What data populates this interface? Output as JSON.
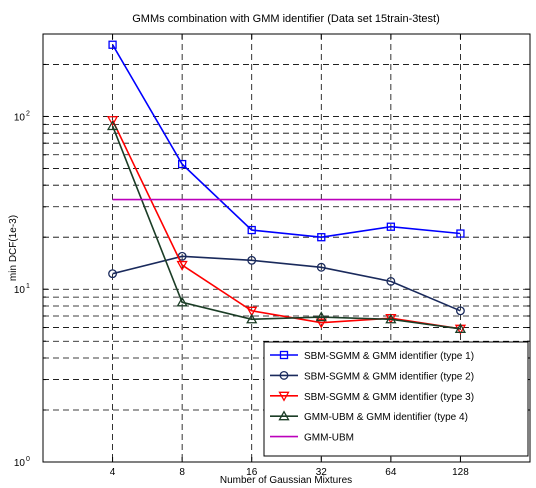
{
  "chart_data": {
    "type": "line",
    "title": "GMMs combination with GMM identifier (Data set 15train-3test)",
    "xlabel": "Number of Gaussian Mixtures",
    "ylabel": "min DCF(1e-3)",
    "x_scale": "log2",
    "y_scale": "log10",
    "x_ticks": [
      4,
      8,
      16,
      32,
      64,
      128
    ],
    "x_tick_labels": [
      "4",
      "8",
      "16",
      "32",
      "64",
      "128"
    ],
    "xlim": [
      2,
      256
    ],
    "ylim": [
      1,
      300
    ],
    "y_ticks": [
      {
        "base": "10",
        "exp": "0",
        "value": 1
      },
      {
        "base": "10",
        "exp": "1",
        "value": 10
      },
      {
        "base": "10",
        "exp": "2",
        "value": 100
      }
    ],
    "grid": true,
    "legend_position": "bottom-right",
    "series": [
      {
        "name": "SBM-SGMM & GMM identifier (type 1)",
        "color": "#0000ff",
        "marker": "square",
        "x": [
          4,
          8,
          16,
          32,
          64,
          128
        ],
        "y": [
          260,
          53,
          22,
          20,
          23,
          21
        ]
      },
      {
        "name": "SBM-SGMM & GMM identifier (type 2)",
        "color": "#1a2a5c",
        "marker": "circle",
        "x": [
          4,
          8,
          16,
          32,
          64,
          128
        ],
        "y": [
          12.3,
          15.5,
          14.7,
          13.4,
          11.1,
          7.5
        ]
      },
      {
        "name": "SBM-SGMM & GMM identifier (type 3)",
        "color": "#ff0000",
        "marker": "triangle-down",
        "x": [
          4,
          8,
          16,
          32,
          64,
          128
        ],
        "y": [
          95,
          13.8,
          7.5,
          6.4,
          6.8,
          5.9
        ]
      },
      {
        "name": "GMM-UBM & GMM identifier (type 4)",
        "color": "#1b3d26",
        "marker": "triangle-up",
        "x": [
          4,
          8,
          16,
          32,
          64,
          128
        ],
        "y": [
          88,
          8.4,
          6.7,
          6.9,
          6.7,
          5.9
        ]
      },
      {
        "name": "GMM-UBM",
        "color": "#bb00bb",
        "marker": "none",
        "x": [
          4,
          128
        ],
        "y": [
          33,
          33
        ]
      }
    ]
  }
}
